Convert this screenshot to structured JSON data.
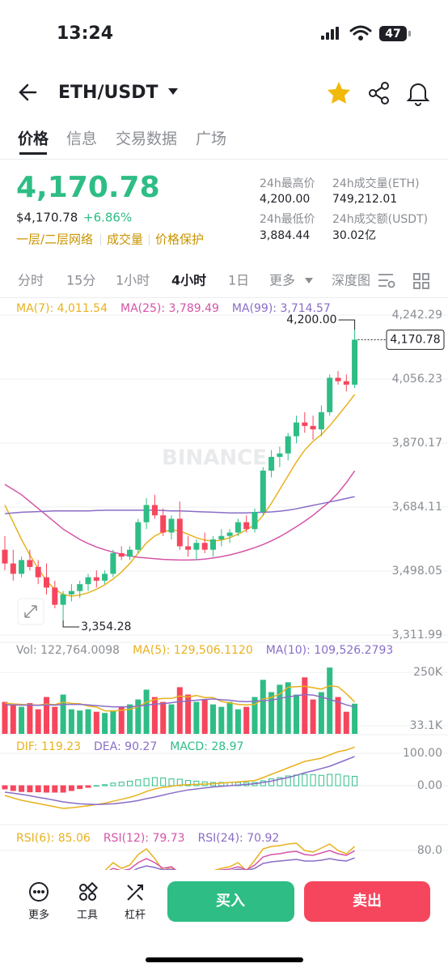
{
  "status": {
    "time": "13:24",
    "battery": "47"
  },
  "header": {
    "pair": "ETH/USDT"
  },
  "tabs": [
    "价格",
    "信息",
    "交易数据",
    "广场"
  ],
  "price": {
    "last": "4,170.78",
    "usd": "$4,170.78",
    "change": "+6.86%",
    "tags": [
      "一层/二层网络",
      "成交量",
      "价格保护"
    ]
  },
  "stats": [
    {
      "label": "24h最高价",
      "value": "4,200.00"
    },
    {
      "label": "24h成交量(ETH)",
      "value": "749,212.01"
    },
    {
      "label": "24h最低价",
      "value": "3,884.44"
    },
    {
      "label": "24h成交额(USDT)",
      "value": "30.02亿"
    }
  ],
  "intervals": [
    "分时",
    "15分",
    "1小时",
    "4小时",
    "1日",
    "更多",
    "深度图"
  ],
  "chart_data": {
    "type": "candlestick",
    "watermark": "BINANCE",
    "up_color": "#2ebd85",
    "down_color": "#f6465d",
    "open": [
      3560,
      3520,
      3490,
      3530,
      3510,
      3480,
      3450,
      3400,
      3430,
      3440,
      3460,
      3480,
      3470,
      3490,
      3550,
      3540,
      3560,
      3640,
      3690,
      3660,
      3610,
      3650,
      3570,
      3560,
      3580,
      3560,
      3590,
      3600,
      3610,
      3640,
      3620,
      3670,
      3790,
      3830,
      3840,
      3890,
      3930,
      3920,
      3910,
      3960,
      4060,
      4050,
      4040
    ],
    "high": [
      3600,
      3560,
      3540,
      3560,
      3530,
      3520,
      3470,
      3440,
      3460,
      3470,
      3490,
      3500,
      3500,
      3560,
      3570,
      3570,
      3650,
      3710,
      3720,
      3680,
      3660,
      3700,
      3600,
      3590,
      3610,
      3600,
      3620,
      3620,
      3650,
      3660,
      3680,
      3800,
      3850,
      3860,
      3900,
      3950,
      3960,
      3950,
      3980,
      4070,
      4080,
      4070,
      4200
    ],
    "low": [
      3500,
      3470,
      3480,
      3500,
      3460,
      3430,
      3390,
      3354.28,
      3410,
      3420,
      3440,
      3450,
      3460,
      3480,
      3530,
      3530,
      3550,
      3620,
      3650,
      3600,
      3590,
      3560,
      3540,
      3530,
      3550,
      3540,
      3570,
      3580,
      3600,
      3610,
      3610,
      3660,
      3770,
      3800,
      3820,
      3870,
      3900,
      3880,
      3890,
      3950,
      4040,
      4020,
      4030
    ],
    "close": [
      3520,
      3490,
      3530,
      3510,
      3480,
      3450,
      3400,
      3430,
      3440,
      3460,
      3480,
      3470,
      3490,
      3550,
      3540,
      3560,
      3640,
      3690,
      3660,
      3610,
      3650,
      3570,
      3560,
      3580,
      3560,
      3590,
      3600,
      3610,
      3640,
      3620,
      3670,
      3790,
      3830,
      3840,
      3890,
      3930,
      3920,
      3910,
      3960,
      4060,
      4050,
      4040,
      4170.78
    ],
    "series": [
      {
        "name": "MA(7): 4,011.54",
        "color": "#e8b21e",
        "values": [
          3690,
          3640,
          3590,
          3545,
          3505,
          3470,
          3445,
          3430,
          3425,
          3428,
          3435,
          3445,
          3458,
          3475,
          3495,
          3520,
          3550,
          3580,
          3600,
          3612,
          3618,
          3615,
          3605,
          3595,
          3588,
          3585,
          3588,
          3595,
          3605,
          3618,
          3632,
          3660,
          3695,
          3735,
          3775,
          3815,
          3850,
          3875,
          3895,
          3920,
          3950,
          3980,
          4011.54
        ]
      },
      {
        "name": "MA(25): 3,789.49",
        "color": "#d554a8",
        "values": [
          3750,
          3735,
          3720,
          3700,
          3680,
          3660,
          3640,
          3620,
          3605,
          3590,
          3578,
          3568,
          3560,
          3553,
          3547,
          3542,
          3538,
          3536,
          3534,
          3532,
          3531,
          3530,
          3530,
          3531,
          3533,
          3536,
          3540,
          3545,
          3551,
          3558,
          3566,
          3575,
          3586,
          3598,
          3612,
          3627,
          3643,
          3660,
          3680,
          3700,
          3725,
          3755,
          3789.49
        ]
      },
      {
        "name": "MA(99): 3,714.57",
        "color": "#8a6dc7",
        "values": [
          3665,
          3667,
          3669,
          3670,
          3671,
          3672,
          3673,
          3673,
          3673,
          3673,
          3673,
          3674,
          3675,
          3675,
          3675,
          3675,
          3675,
          3675,
          3675,
          3674,
          3673,
          3673,
          3672,
          3671,
          3670,
          3669,
          3668,
          3667,
          3667,
          3667,
          3668,
          3669,
          3670,
          3672,
          3675,
          3679,
          3684,
          3689,
          3694,
          3699,
          3704,
          3709,
          3714.57
        ]
      }
    ],
    "ylim": [
      3311.99,
      4242.29
    ],
    "yticks": [
      {
        "value": 4242.29,
        "label": "4,242.29"
      },
      {
        "value": 4056.23,
        "label": "4,056.23"
      },
      {
        "value": 3870.17,
        "label": "3,870.17"
      },
      {
        "value": 3684.11,
        "label": "3,684.11"
      },
      {
        "value": 3498.05,
        "label": "3,498.05"
      },
      {
        "value": 3311.99,
        "label": "3,311.99"
      }
    ],
    "max_label": "4,200.00",
    "min_label": "3,354.28",
    "last_label": "4,170.78",
    "volume": {
      "label": "Vol: 122,764.0098",
      "values": [
        130000,
        120000,
        110000,
        125000,
        100000,
        150000,
        110000,
        160000,
        100000,
        95000,
        100000,
        90000,
        85000,
        95000,
        110000,
        120000,
        140000,
        180000,
        150000,
        130000,
        120000,
        190000,
        160000,
        130000,
        140000,
        120000,
        110000,
        130000,
        100000,
        110000,
        150000,
        220000,
        170000,
        200000,
        210000,
        160000,
        230000,
        140000,
        170000,
        270000,
        150000,
        90000,
        122764.0098
      ],
      "series": [
        {
          "name": "MA(5): 129,506.1120",
          "color": "#e8b21e",
          "values": [
            125000,
            122000,
            120000,
            118000,
            117000,
            121000,
            119000,
            129000,
            124000,
            123000,
            113000,
            109000,
            94000,
            93000,
            96000,
            100000,
            110000,
            129000,
            140000,
            144000,
            144000,
            154000,
            150000,
            156000,
            148000,
            148000,
            132000,
            126000,
            120000,
            118000,
            120000,
            142000,
            148000,
            162000,
            190000,
            192000,
            194000,
            188000,
            182000,
            196000,
            192000,
            164000,
            129506.112
          ]
        },
        {
          "name": "MA(10): 109,526.2793",
          "color": "#8a6dc7",
          "values": [
            118000,
            118000,
            117000,
            117000,
            116000,
            118000,
            117000,
            120000,
            120000,
            120000,
            118000,
            115000,
            112000,
            110000,
            110000,
            110000,
            113000,
            116000,
            121000,
            123000,
            127000,
            131000,
            134000,
            137000,
            140000,
            142000,
            139000,
            137000,
            133000,
            131000,
            133000,
            136000,
            137000,
            144000,
            151000,
            155000,
            160000,
            158000,
            150000,
            140000,
            130000,
            118000,
            109526.2793
          ]
        }
      ],
      "ylim": [
        0,
        310000
      ],
      "yticks": [
        {
          "value": 250000,
          "label": "250K"
        },
        {
          "value": 33100,
          "label": "33.1K"
        }
      ]
    },
    "macd": {
      "series": [
        {
          "name": "DIF: 119.23",
          "color": "#e8b21e",
          "values": [
            -30,
            -38,
            -45,
            -50,
            -55,
            -60,
            -65,
            -70,
            -68,
            -65,
            -62,
            -58,
            -54,
            -48,
            -42,
            -36,
            -28,
            -18,
            -10,
            -5,
            -2,
            2,
            3,
            4,
            5,
            6,
            8,
            10,
            12,
            14,
            16,
            25,
            35,
            45,
            55,
            65,
            75,
            80,
            85,
            95,
            105,
            110,
            119.23
          ]
        },
        {
          "name": "DEA: 90.27",
          "color": "#8a6dc7",
          "values": [
            -20,
            -23,
            -27,
            -31,
            -36,
            -40,
            -45,
            -50,
            -53,
            -56,
            -57,
            -58,
            -57,
            -56,
            -53,
            -50,
            -46,
            -40,
            -35,
            -29,
            -23,
            -18,
            -13,
            -10,
            -7,
            -4,
            -2,
            0,
            2,
            4,
            6,
            10,
            14,
            20,
            25,
            32,
            40,
            46,
            53,
            60,
            70,
            80,
            90.27
          ]
        }
      ],
      "name": "MACD: 28.97",
      "values": [
        -10,
        -15,
        -18,
        -19,
        -19,
        -20,
        -20,
        -20,
        -15,
        -9,
        -5,
        0,
        3,
        8,
        11,
        14,
        18,
        22,
        25,
        24,
        21,
        20,
        16,
        14,
        12,
        10,
        10,
        10,
        10,
        10,
        10,
        15,
        21,
        25,
        30,
        33,
        35,
        34,
        32,
        35,
        35,
        30,
        28.97
      ],
      "ylim": [
        -112.5,
        137.5
      ],
      "yticks": [
        {
          "value": 100,
          "label": "100.00"
        },
        {
          "value": 0,
          "label": "0.00"
        }
      ]
    },
    "rsi": {
      "series": [
        {
          "name": "RSI(6): 85.06",
          "color": "#e8b21e",
          "values": [
            40,
            35,
            45,
            38,
            33,
            30,
            25,
            40,
            45,
            50,
            55,
            48,
            55,
            65,
            58,
            62,
            75,
            82,
            70,
            55,
            60,
            45,
            42,
            50,
            45,
            55,
            58,
            60,
            65,
            55,
            68,
            82,
            85,
            86,
            88,
            89,
            80,
            78,
            83,
            88,
            80,
            76,
            85.06
          ]
        },
        {
          "name": "RSI(12): 79.73",
          "color": "#d554a8",
          "values": [
            45,
            42,
            45,
            42,
            40,
            38,
            35,
            42,
            45,
            48,
            50,
            48,
            52,
            58,
            55,
            57,
            65,
            70,
            65,
            58,
            60,
            52,
            50,
            53,
            50,
            54,
            56,
            57,
            60,
            56,
            62,
            72,
            75,
            76,
            78,
            79,
            75,
            74,
            77,
            80,
            76,
            74,
            79.73
          ]
        },
        {
          "name": "RSI(24): 70.92",
          "color": "#8a6dc7",
          "values": [
            48,
            46,
            47,
            46,
            45,
            44,
            42,
            45,
            46,
            48,
            49,
            48,
            50,
            53,
            52,
            53,
            58,
            61,
            59,
            56,
            57,
            53,
            52,
            53,
            52,
            54,
            55,
            55,
            57,
            55,
            58,
            64,
            66,
            67,
            68,
            69,
            67,
            67,
            68,
            70,
            68,
            67,
            70.92
          ]
        }
      ],
      "ylim": [
        0,
        100
      ],
      "yticks": [
        {
          "value": 80,
          "label": "80.0"
        }
      ]
    }
  },
  "toolbar": [
    "更多",
    "工具",
    "杠杆"
  ],
  "buttons": [
    "买入",
    "卖出"
  ]
}
